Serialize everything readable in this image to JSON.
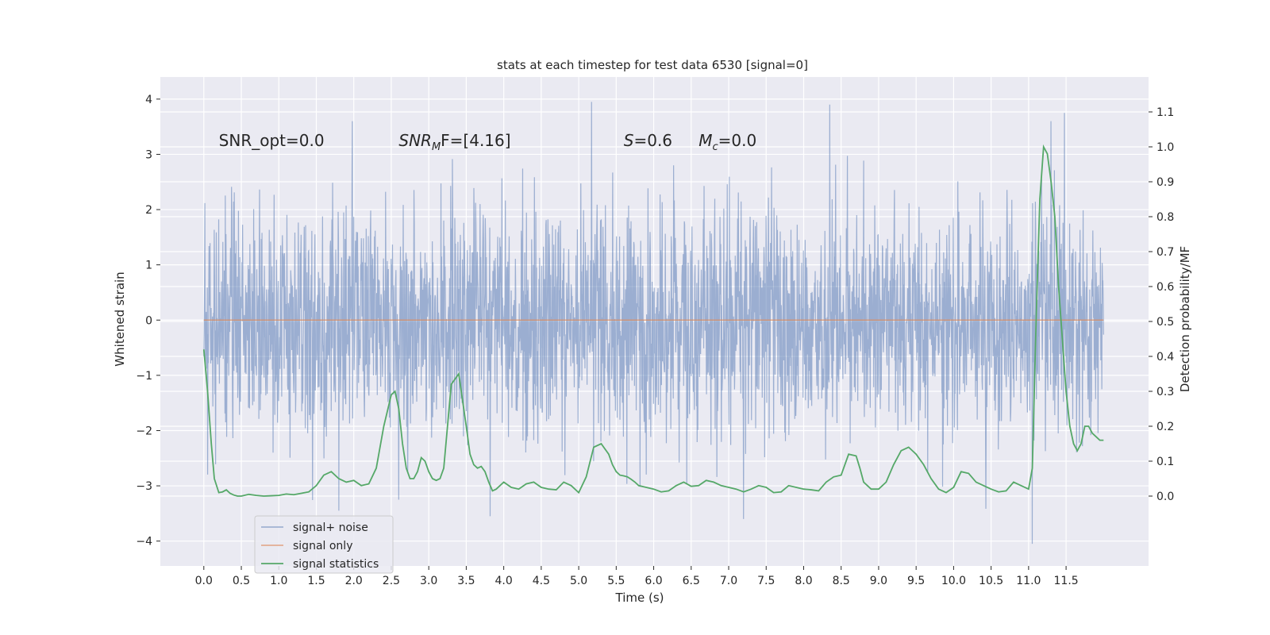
{
  "chart_data": {
    "type": "line",
    "title": "stats at each timestep for test data 6530 [signal=0]",
    "xlabel": "Time (s)",
    "ylabel": "Whitened strain",
    "ylabel_right": "Detection probability/MF",
    "xlim": [
      -0.58,
      12.6
    ],
    "ylim": [
      -4.45,
      4.4
    ],
    "ylim_right": [
      -0.2,
      1.2
    ],
    "xticks": [
      0.0,
      0.5,
      1.0,
      1.5,
      2.0,
      2.5,
      3.0,
      3.5,
      4.0,
      4.5,
      5.0,
      5.5,
      6.0,
      6.5,
      7.0,
      7.5,
      8.0,
      8.5,
      9.0,
      9.5,
      10.0,
      10.5,
      11.0,
      11.5
    ],
    "xtick_labels": [
      "0.0",
      "0.5",
      "1.0",
      "1.5",
      "2.0",
      "2.5",
      "3.0",
      "3.5",
      "4.0",
      "4.5",
      "5.0",
      "5.5",
      "6.0",
      "6.5",
      "7.0",
      "7.5",
      "8.0",
      "8.5",
      "9.0",
      "9.5",
      "10.0",
      "10.5",
      "11.0",
      "11.5"
    ],
    "yticks": [
      -4,
      -3,
      -2,
      -1,
      0,
      1,
      2,
      3,
      4
    ],
    "ytick_labels": [
      "−4",
      "−3",
      "−2",
      "−1",
      "0",
      "1",
      "2",
      "3",
      "4"
    ],
    "yticks_right": [
      0.0,
      0.1,
      0.2,
      0.3,
      0.4,
      0.5,
      0.6,
      0.7,
      0.8,
      0.9,
      1.0,
      1.1
    ],
    "ytick_labels_right": [
      "0.0",
      "0.1",
      "0.2",
      "0.3",
      "0.4",
      "0.5",
      "0.6",
      "0.7",
      "0.8",
      "0.9",
      "1.0",
      "1.1"
    ],
    "grid": true,
    "legend_position": "lower-left",
    "annotations": [
      {
        "label": "SNR_opt=0.0",
        "x": 0.2,
        "y": 3.15
      },
      {
        "label": "SNR",
        "sub": "M",
        "rest": "F=[4.16]",
        "x": 2.6,
        "y": 3.15
      },
      {
        "label": "S",
        "rest": "=0.6",
        "x": 5.6,
        "y": 3.15
      },
      {
        "label": "M",
        "sub": "c",
        "rest": "=0.0",
        "x": 6.6,
        "y": 3.15
      }
    ],
    "series": [
      {
        "name": "signal+ noise",
        "axis": "left",
        "color": "#4c72b0",
        "note": "dense whitened noise time series, roughly +/-1.3 core, peaks near +/-3 to +/-4",
        "x_range": [
          0.0,
          12.0
        ],
        "peaks": [
          {
            "x": 1.8,
            "y": -3.45
          },
          {
            "x": 1.98,
            "y": 3.6
          },
          {
            "x": 2.6,
            "y": -3.25
          },
          {
            "x": 3.82,
            "y": -3.55
          },
          {
            "x": 5.17,
            "y": 3.95
          },
          {
            "x": 7.2,
            "y": -3.6
          },
          {
            "x": 8.35,
            "y": 3.9
          },
          {
            "x": 11.05,
            "y": -4.05
          },
          {
            "x": 11.48,
            "y": 3.75
          },
          {
            "x": 11.3,
            "y": 3.6
          }
        ]
      },
      {
        "name": "signal only",
        "axis": "left",
        "color": "#dd8452",
        "x": [
          0.0,
          12.0
        ],
        "y": [
          0.0,
          0.0
        ]
      },
      {
        "name": "signal statistics",
        "axis": "right",
        "color": "#55a868",
        "x": [
          0.0,
          0.05,
          0.1,
          0.14,
          0.2,
          0.25,
          0.3,
          0.35,
          0.4,
          0.45,
          0.5,
          0.6,
          0.7,
          0.8,
          0.9,
          1.0,
          1.1,
          1.2,
          1.3,
          1.4,
          1.5,
          1.6,
          1.7,
          1.8,
          1.9,
          2.0,
          2.1,
          2.2,
          2.3,
          2.4,
          2.5,
          2.55,
          2.6,
          2.65,
          2.7,
          2.75,
          2.8,
          2.85,
          2.9,
          2.95,
          3.0,
          3.05,
          3.1,
          3.15,
          3.2,
          3.3,
          3.4,
          3.5,
          3.55,
          3.6,
          3.65,
          3.7,
          3.75,
          3.8,
          3.85,
          3.9,
          4.0,
          4.1,
          4.2,
          4.3,
          4.4,
          4.5,
          4.6,
          4.7,
          4.8,
          4.9,
          5.0,
          5.1,
          5.2,
          5.3,
          5.4,
          5.45,
          5.5,
          5.55,
          5.6,
          5.65,
          5.7,
          5.75,
          5.8,
          5.9,
          6.0,
          6.1,
          6.2,
          6.3,
          6.4,
          6.5,
          6.6,
          6.7,
          6.8,
          6.9,
          7.0,
          7.1,
          7.2,
          7.3,
          7.4,
          7.5,
          7.6,
          7.7,
          7.8,
          7.9,
          8.0,
          8.1,
          8.2,
          8.3,
          8.4,
          8.5,
          8.6,
          8.7,
          8.75,
          8.8,
          8.9,
          9.0,
          9.1,
          9.2,
          9.3,
          9.4,
          9.5,
          9.6,
          9.7,
          9.8,
          9.9,
          10.0,
          10.1,
          10.2,
          10.3,
          10.4,
          10.5,
          10.6,
          10.7,
          10.8,
          10.9,
          11.0,
          11.05,
          11.1,
          11.15,
          11.2,
          11.25,
          11.3,
          11.35,
          11.4,
          11.45,
          11.5,
          11.55,
          11.6,
          11.65,
          11.7,
          11.75,
          11.8,
          11.85,
          11.9,
          11.95,
          12.0
        ],
        "y": [
          0.42,
          0.3,
          0.15,
          0.05,
          0.01,
          0.012,
          0.018,
          0.008,
          0.003,
          0.0,
          0.0,
          0.005,
          0.002,
          0.0,
          0.001,
          0.002,
          0.006,
          0.004,
          0.008,
          0.012,
          0.03,
          0.06,
          0.07,
          0.05,
          0.04,
          0.045,
          0.03,
          0.035,
          0.08,
          0.2,
          0.29,
          0.3,
          0.25,
          0.15,
          0.08,
          0.05,
          0.05,
          0.07,
          0.11,
          0.1,
          0.07,
          0.05,
          0.045,
          0.05,
          0.08,
          0.32,
          0.35,
          0.2,
          0.12,
          0.09,
          0.08,
          0.085,
          0.07,
          0.04,
          0.015,
          0.02,
          0.04,
          0.025,
          0.02,
          0.035,
          0.04,
          0.025,
          0.02,
          0.018,
          0.04,
          0.03,
          0.01,
          0.055,
          0.14,
          0.15,
          0.12,
          0.09,
          0.07,
          0.06,
          0.058,
          0.055,
          0.048,
          0.04,
          0.03,
          0.025,
          0.02,
          0.012,
          0.015,
          0.03,
          0.04,
          0.028,
          0.03,
          0.045,
          0.04,
          0.03,
          0.025,
          0.02,
          0.012,
          0.02,
          0.03,
          0.025,
          0.01,
          0.012,
          0.03,
          0.025,
          0.02,
          0.018,
          0.015,
          0.04,
          0.055,
          0.06,
          0.12,
          0.115,
          0.08,
          0.04,
          0.02,
          0.02,
          0.04,
          0.09,
          0.13,
          0.14,
          0.12,
          0.09,
          0.05,
          0.02,
          0.01,
          0.025,
          0.07,
          0.065,
          0.04,
          0.03,
          0.02,
          0.012,
          0.015,
          0.04,
          0.03,
          0.02,
          0.08,
          0.5,
          0.85,
          1.0,
          0.98,
          0.9,
          0.8,
          0.6,
          0.45,
          0.3,
          0.2,
          0.15,
          0.13,
          0.15,
          0.2,
          0.2,
          0.18,
          0.17,
          0.16,
          0.16
        ]
      }
    ]
  }
}
